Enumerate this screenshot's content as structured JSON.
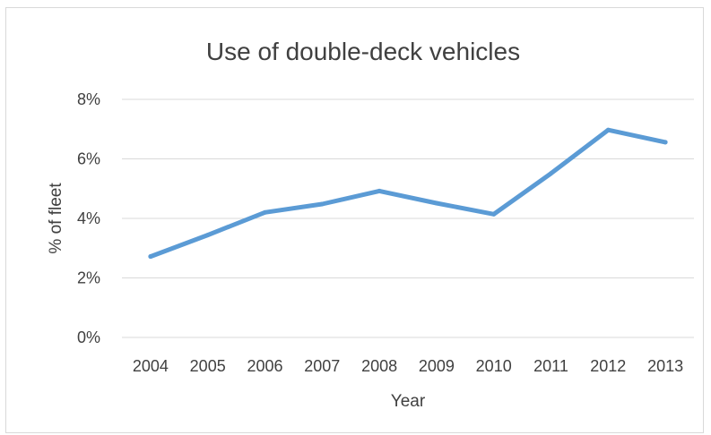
{
  "chart_data": {
    "type": "line",
    "title": "Use of double-deck vehicles",
    "xlabel": "Year",
    "ylabel": "% of fleet",
    "categories": [
      "2004",
      "2005",
      "2006",
      "2007",
      "2008",
      "2009",
      "2010",
      "2011",
      "2012",
      "2013"
    ],
    "series": [
      {
        "values": [
          2.72,
          3.44,
          4.2,
          4.48,
          4.92,
          4.51,
          4.14,
          5.51,
          6.97,
          6.56
        ]
      }
    ],
    "ylim": [
      0,
      8
    ],
    "yticks": [
      "0%",
      "2%",
      "4%",
      "6%",
      "8%"
    ],
    "grid": true,
    "legend": "none",
    "colors": {
      "line": "#5b9bd5",
      "grid": "#d9d9d9",
      "text": "#404040"
    }
  }
}
